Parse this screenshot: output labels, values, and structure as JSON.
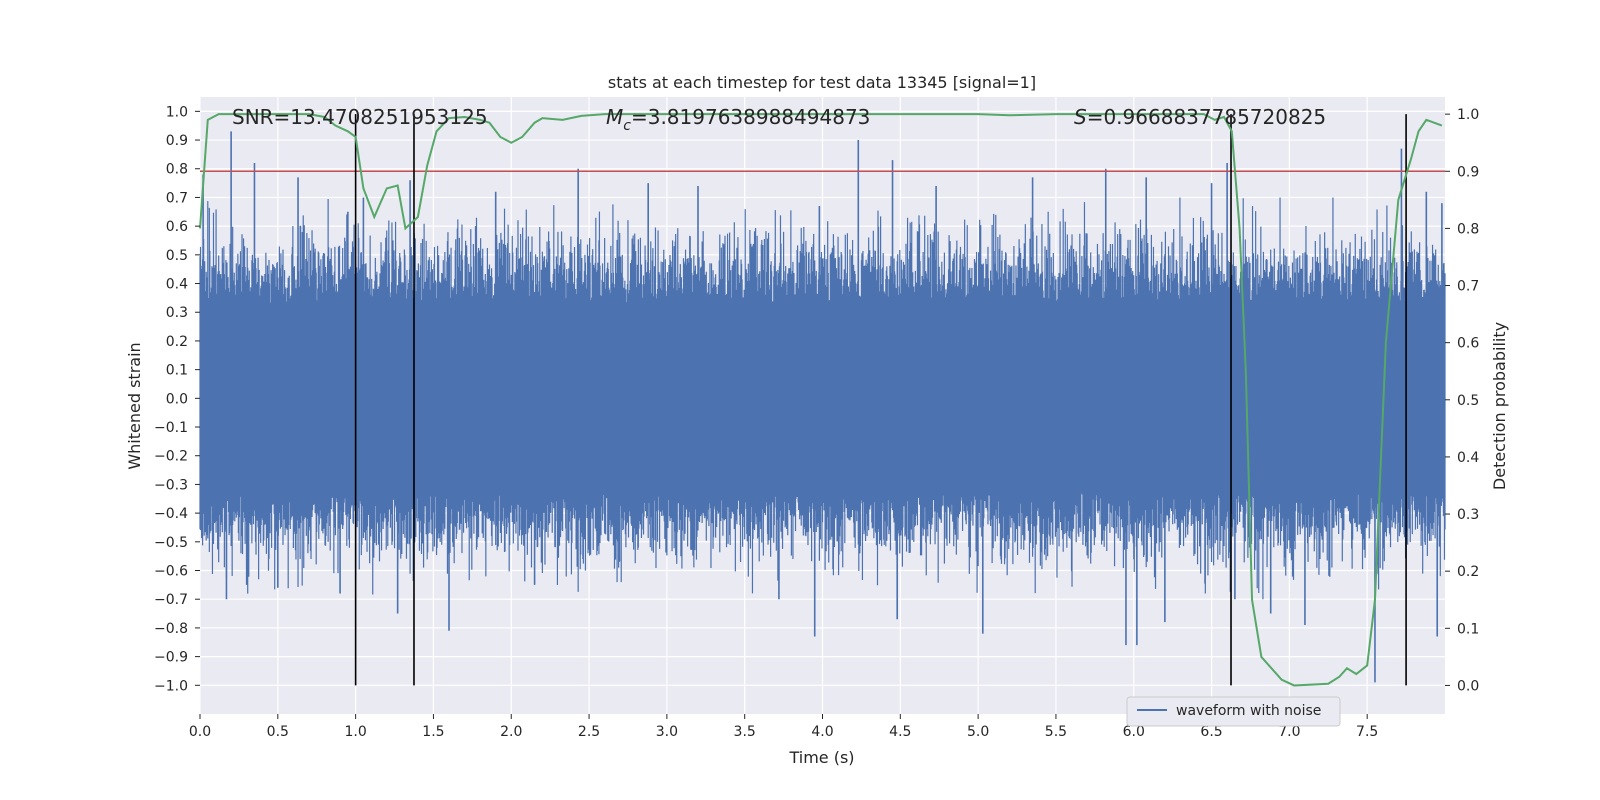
{
  "chart_data": {
    "type": "line",
    "title": "stats at each timestep for test data 13345 [signal=1]",
    "xlabel": "Time (s)",
    "ylabel_left": "Whitened strain",
    "ylabel_right": "Detection probability",
    "xlim": [
      0,
      8
    ],
    "ylim_left": [
      -1.1,
      1.05
    ],
    "ylim_right": [
      -0.05,
      1.03
    ],
    "x_ticks": [
      0.0,
      0.5,
      1.0,
      1.5,
      2.0,
      2.5,
      3.0,
      3.5,
      4.0,
      4.5,
      5.0,
      5.5,
      6.0,
      6.5,
      7.0,
      7.5
    ],
    "x_tick_labels": [
      "0.0",
      "0.5",
      "1.0",
      "1.5",
      "2.0",
      "2.5",
      "3.0",
      "3.5",
      "4.0",
      "4.5",
      "5.0",
      "5.5",
      "6.0",
      "6.5",
      "7.0",
      "7.5"
    ],
    "y_left_ticks": [
      1.0,
      0.9,
      0.8,
      0.7,
      0.6,
      0.5,
      0.4,
      0.3,
      0.2,
      0.1,
      0.0,
      -0.1,
      -0.2,
      -0.3,
      -0.4,
      -0.5,
      -0.6,
      -0.7,
      -0.8,
      -0.9,
      -1.0
    ],
    "y_left_tick_labels": [
      "1.0",
      "0.9",
      "0.8",
      "0.7",
      "0.6",
      "0.5",
      "0.4",
      "0.3",
      "0.2",
      "0.1",
      "0.0",
      "−0.1",
      "−0.2",
      "−0.3",
      "−0.4",
      "−0.5",
      "−0.6",
      "−0.7",
      "−0.8",
      "−0.9",
      "−1.0"
    ],
    "y_right_ticks": [
      1.0,
      0.9,
      0.8,
      0.7,
      0.6,
      0.5,
      0.4,
      0.3,
      0.2,
      0.1,
      0.0
    ],
    "y_right_tick_labels": [
      "1.0",
      "0.9",
      "0.8",
      "0.7",
      "0.6",
      "0.5",
      "0.4",
      "0.3",
      "0.2",
      "0.1",
      "0.0"
    ],
    "grid": true,
    "legend_placement": "lower-right",
    "annotations": {
      "snr": "SNR=13.4708251953125",
      "mc_symbol": "M",
      "mc_sub": "c",
      "mc_value": "=3.8197638988494873",
      "s_symbol": "S",
      "s_value": "=0.9668837785720825"
    },
    "threshold_probability": 0.9,
    "vertical_lines_x": [
      1.0,
      1.375,
      6.625,
      7.75
    ],
    "series": [
      {
        "name": "waveform with noise",
        "axis": "left",
        "color": "#4c72b0",
        "style": "noise",
        "typical_amplitude": 0.33,
        "peak_samples": [
          [
            0.02,
            0.78
          ],
          [
            0.2,
            0.93
          ],
          [
            0.35,
            0.82
          ],
          [
            0.63,
            0.77
          ],
          [
            0.95,
            0.65
          ],
          [
            1.05,
            0.7
          ],
          [
            1.35,
            0.76
          ],
          [
            1.9,
            0.72
          ],
          [
            2.43,
            0.8
          ],
          [
            2.88,
            0.75
          ],
          [
            3.2,
            0.74
          ],
          [
            3.98,
            0.67
          ],
          [
            4.23,
            0.9
          ],
          [
            4.45,
            0.83
          ],
          [
            4.73,
            0.74
          ],
          [
            5.35,
            0.77
          ],
          [
            5.82,
            0.8
          ],
          [
            6.08,
            0.77
          ],
          [
            6.5,
            0.75
          ],
          [
            6.6,
            0.82
          ],
          [
            7.72,
            0.87
          ],
          [
            7.88,
            0.72
          ],
          [
            7.98,
            0.68
          ],
          [
            0.3,
            -0.65
          ],
          [
            0.17,
            -0.7
          ],
          [
            0.5,
            -0.66
          ],
          [
            0.9,
            -0.68
          ],
          [
            1.27,
            -0.75
          ],
          [
            1.6,
            -0.81
          ],
          [
            2.15,
            -0.65
          ],
          [
            3.72,
            -0.7
          ],
          [
            3.95,
            -0.83
          ],
          [
            4.48,
            -0.77
          ],
          [
            5.03,
            -0.82
          ],
          [
            5.95,
            -0.86
          ],
          [
            6.02,
            -0.86
          ],
          [
            6.2,
            -0.78
          ],
          [
            6.65,
            -0.7
          ],
          [
            6.88,
            -0.75
          ],
          [
            7.1,
            -0.79
          ],
          [
            7.55,
            -0.99
          ],
          [
            7.95,
            -0.83
          ]
        ]
      },
      {
        "name": "",
        "axis": "right",
        "color": "#55a868",
        "points": [
          [
            0.0,
            0.8
          ],
          [
            0.05,
            0.99
          ],
          [
            0.12,
            1.0
          ],
          [
            0.3,
            1.0
          ],
          [
            0.5,
            1.0
          ],
          [
            0.7,
            1.0
          ],
          [
            0.8,
            0.995
          ],
          [
            0.87,
            0.98
          ],
          [
            0.95,
            0.97
          ],
          [
            1.0,
            0.96
          ],
          [
            1.05,
            0.87
          ],
          [
            1.12,
            0.82
          ],
          [
            1.2,
            0.87
          ],
          [
            1.27,
            0.875
          ],
          [
            1.32,
            0.8
          ],
          [
            1.4,
            0.82
          ],
          [
            1.46,
            0.91
          ],
          [
            1.52,
            0.97
          ],
          [
            1.6,
            0.993
          ],
          [
            1.7,
            0.995
          ],
          [
            1.8,
            0.99
          ],
          [
            1.86,
            0.985
          ],
          [
            1.93,
            0.96
          ],
          [
            2.0,
            0.95
          ],
          [
            2.07,
            0.96
          ],
          [
            2.15,
            0.985
          ],
          [
            2.2,
            0.993
          ],
          [
            2.33,
            0.99
          ],
          [
            2.45,
            0.997
          ],
          [
            2.6,
            1.0
          ],
          [
            3.0,
            1.0
          ],
          [
            3.5,
            1.0
          ],
          [
            4.0,
            1.0
          ],
          [
            4.5,
            1.0
          ],
          [
            5.0,
            1.0
          ],
          [
            5.2,
            0.998
          ],
          [
            5.5,
            1.0
          ],
          [
            6.0,
            1.0
          ],
          [
            6.45,
            1.0
          ],
          [
            6.52,
            0.99
          ],
          [
            6.58,
            0.995
          ],
          [
            6.63,
            0.97
          ],
          [
            6.68,
            0.8
          ],
          [
            6.72,
            0.55
          ],
          [
            6.76,
            0.15
          ],
          [
            6.82,
            0.05
          ],
          [
            6.95,
            0.01
          ],
          [
            7.03,
            0.0
          ],
          [
            7.25,
            0.003
          ],
          [
            7.32,
            0.015
          ],
          [
            7.37,
            0.03
          ],
          [
            7.43,
            0.02
          ],
          [
            7.5,
            0.035
          ],
          [
            7.55,
            0.15
          ],
          [
            7.62,
            0.6
          ],
          [
            7.7,
            0.85
          ],
          [
            7.78,
            0.92
          ],
          [
            7.83,
            0.97
          ],
          [
            7.88,
            0.99
          ],
          [
            7.98,
            0.98
          ]
        ]
      }
    ]
  }
}
